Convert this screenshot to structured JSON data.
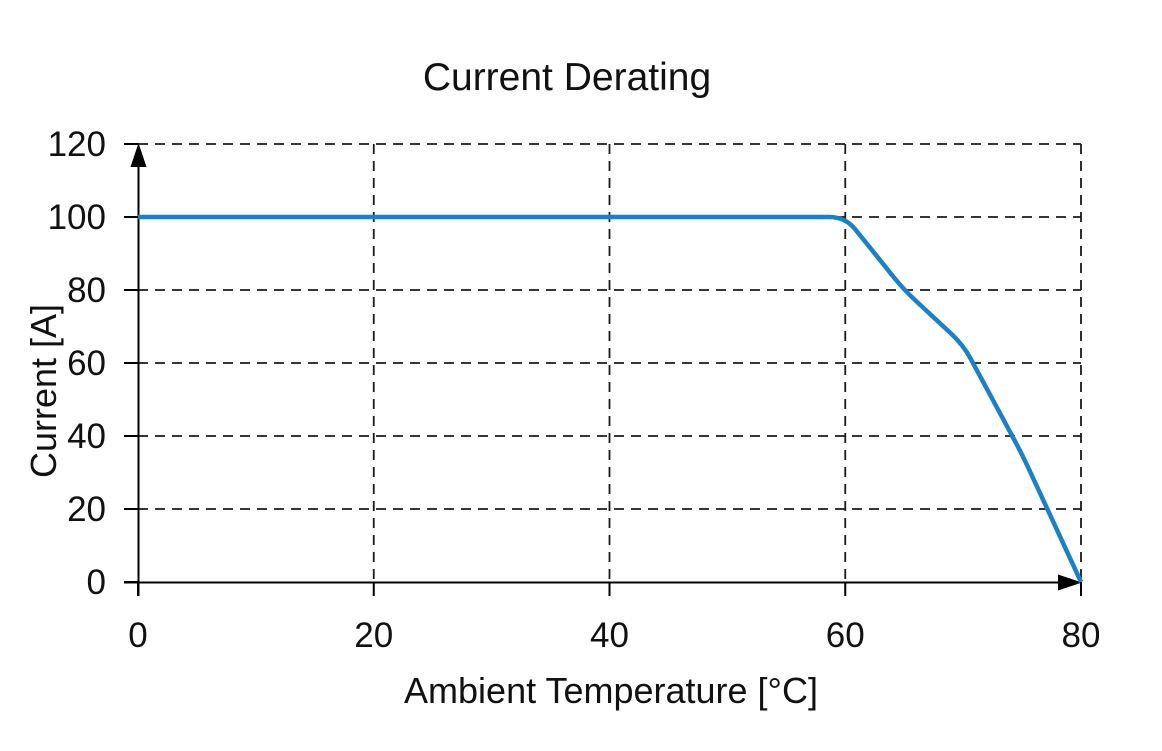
{
  "chart_data": {
    "type": "line",
    "title": "Current Derating",
    "xlabel": "Ambient Temperature [°C]",
    "ylabel": "Current [A]",
    "xlim": [
      0,
      80
    ],
    "ylim": [
      0,
      120
    ],
    "x_ticks": [
      0,
      20,
      40,
      60,
      80
    ],
    "y_ticks": [
      0,
      20,
      40,
      60,
      80,
      100,
      120
    ],
    "grid": "dashed",
    "legend": "none",
    "axis_arrows": true,
    "colors": {
      "line": "#1b80c4",
      "axis": "#000000",
      "grid": "#1a1a1a",
      "text": "#111111"
    },
    "series": [
      {
        "color": "#1b80c4",
        "points": [
          [
            0,
            100
          ],
          [
            60,
            100
          ],
          [
            65,
            80
          ],
          [
            70,
            65
          ],
          [
            75,
            35
          ],
          [
            80,
            0
          ]
        ]
      }
    ]
  }
}
